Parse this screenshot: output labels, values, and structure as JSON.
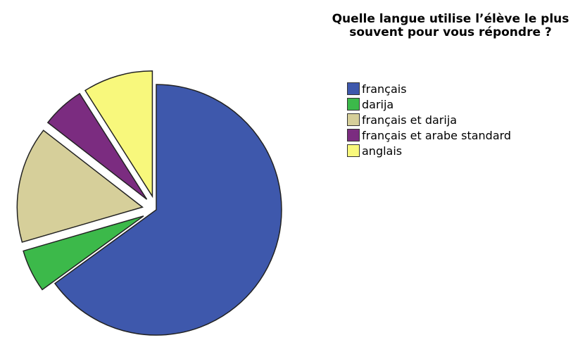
{
  "chart_data": {
    "type": "pie",
    "title": "Quelle langue utilise l’élève le plus souvent pour vous répondre ?",
    "categories": [
      "français",
      "darija",
      "français et darija",
      "français et arabe standard",
      "anglais"
    ],
    "values": [
      65,
      5.5,
      15,
      5.5,
      9
    ],
    "colors": [
      "#3e58ac",
      "#3cb94a",
      "#d6cf9a",
      "#7b2c80",
      "#f8f87c"
    ],
    "exploded": [
      false,
      true,
      true,
      true,
      true
    ]
  }
}
